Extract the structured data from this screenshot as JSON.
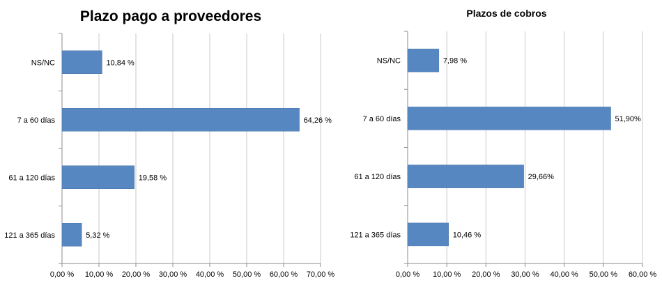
{
  "chart_data": [
    {
      "type": "bar",
      "orientation": "horizontal",
      "title": "Plazo pago a proveedores",
      "categories": [
        "NS/NC",
        "7 a 60 días",
        "61 a 120 días",
        "121 a 365 días"
      ],
      "values": [
        10.84,
        64.26,
        19.58,
        5.32
      ],
      "data_labels": [
        "10,84 %",
        "64,26 %",
        "19,58 %",
        "5,32 %"
      ],
      "xlim": [
        0,
        70
      ],
      "xticks": [
        0,
        10,
        20,
        30,
        40,
        50,
        60,
        70
      ],
      "xtick_labels": [
        "0,00 %",
        "10,00 %",
        "20,00 %",
        "30,00 %",
        "40,00 %",
        "50,00 %",
        "60,00 %",
        "70,00 %"
      ],
      "grid": true,
      "color": "#5787c1"
    },
    {
      "type": "bar",
      "orientation": "horizontal",
      "title": "Plazos de cobros",
      "categories": [
        "NS/NC",
        "7 a 60 días",
        "61 a 120 días",
        "121 a 365 días"
      ],
      "values": [
        7.98,
        51.9,
        29.66,
        10.46
      ],
      "data_labels": [
        "7,98 %",
        "51,90%",
        "29,66%",
        "10,46 %"
      ],
      "xlim": [
        0,
        60
      ],
      "xticks": [
        0,
        10,
        20,
        30,
        40,
        50,
        60
      ],
      "xtick_labels": [
        "0,00 %",
        "10,00 %",
        "20,00 %",
        "30,00 %",
        "40,00 %",
        "50,00 %",
        "60,00 %"
      ],
      "grid": true,
      "color": "#5787c1"
    }
  ]
}
